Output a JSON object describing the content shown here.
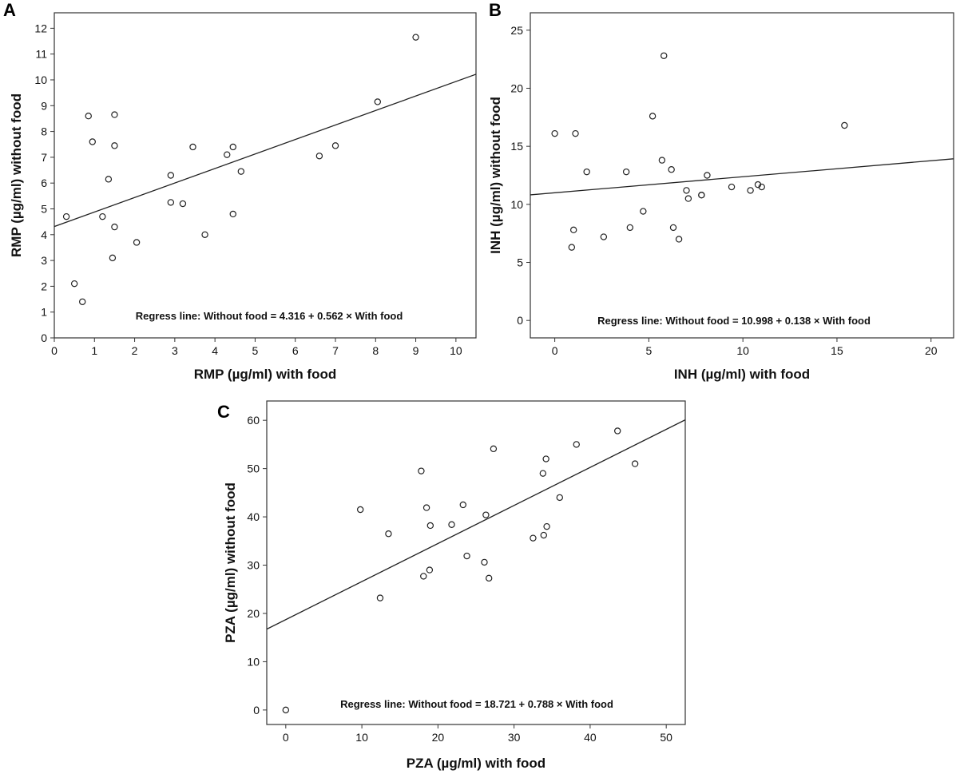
{
  "chart_data": [
    {
      "type": "scatter",
      "panel": "A",
      "xlabel": "RMP (µg/ml) with food",
      "ylabel": "RMP (µg/ml) without food",
      "xlim": [
        0,
        10.5
      ],
      "ylim": [
        0,
        12.6
      ],
      "xticks": [
        0,
        1,
        2,
        3,
        4,
        5,
        6,
        7,
        8,
        9,
        10
      ],
      "yticks": [
        0,
        1,
        2,
        3,
        4,
        5,
        6,
        7,
        8,
        9,
        10,
        11,
        12
      ],
      "annotation": "Regress line: Without food = 4.316 + 0.562 × With food",
      "regression": {
        "intercept": 4.316,
        "slope": 0.562
      },
      "points": [
        [
          0.3,
          4.7
        ],
        [
          0.5,
          2.1
        ],
        [
          0.7,
          1.4
        ],
        [
          0.85,
          8.6
        ],
        [
          0.95,
          7.6
        ],
        [
          1.2,
          4.7
        ],
        [
          1.35,
          6.15
        ],
        [
          1.45,
          3.1
        ],
        [
          1.5,
          4.3
        ],
        [
          1.5,
          8.65
        ],
        [
          1.5,
          7.45
        ],
        [
          2.05,
          3.7
        ],
        [
          2.9,
          6.3
        ],
        [
          2.9,
          5.25
        ],
        [
          3.2,
          5.2
        ],
        [
          3.45,
          7.4
        ],
        [
          3.75,
          4.0
        ],
        [
          4.3,
          7.1
        ],
        [
          4.45,
          7.4
        ],
        [
          4.45,
          4.8
        ],
        [
          4.65,
          6.45
        ],
        [
          6.6,
          7.05
        ],
        [
          7.0,
          7.45
        ],
        [
          8.05,
          9.15
        ],
        [
          9.0,
          11.65
        ]
      ]
    },
    {
      "type": "scatter",
      "panel": "B",
      "xlabel": "INH (µg/ml) with food",
      "ylabel": "INH (µg/ml) without food",
      "xlim": [
        -1.3,
        21.2
      ],
      "ylim": [
        -1.5,
        26.5
      ],
      "xticks": [
        0,
        5,
        10,
        15,
        20
      ],
      "yticks": [
        0,
        5,
        10,
        15,
        20,
        25
      ],
      "annotation": "Regress line: Without food = 10.998 + 0.138 × With food",
      "regression": {
        "intercept": 10.998,
        "slope": 0.138
      },
      "points": [
        [
          0.0,
          16.1
        ],
        [
          0.9,
          6.3
        ],
        [
          1.0,
          7.8
        ],
        [
          1.1,
          16.1
        ],
        [
          1.7,
          12.8
        ],
        [
          2.6,
          7.2
        ],
        [
          3.8,
          12.8
        ],
        [
          4.0,
          8.0
        ],
        [
          4.7,
          9.4
        ],
        [
          5.2,
          17.6
        ],
        [
          5.7,
          13.8
        ],
        [
          5.8,
          22.8
        ],
        [
          6.2,
          13.0
        ],
        [
          6.3,
          8.0
        ],
        [
          6.6,
          7.0
        ],
        [
          7.0,
          11.2
        ],
        [
          7.1,
          10.5
        ],
        [
          7.8,
          10.8
        ],
        [
          7.8,
          10.8
        ],
        [
          8.1,
          12.5
        ],
        [
          9.4,
          11.5
        ],
        [
          10.4,
          11.2
        ],
        [
          10.8,
          11.7
        ],
        [
          11.0,
          11.5
        ],
        [
          15.4,
          16.8
        ]
      ]
    },
    {
      "type": "scatter",
      "panel": "C",
      "xlabel": "PZA (µg/ml) with food",
      "ylabel": "PZA (µg/ml) without food",
      "xlim": [
        -2.5,
        52.5
      ],
      "ylim": [
        -3,
        64
      ],
      "xticks": [
        0,
        10,
        20,
        30,
        40,
        50
      ],
      "yticks": [
        0,
        10,
        20,
        30,
        40,
        50,
        60
      ],
      "annotation": "Regress line: Without food = 18.721 + 0.788 × With food",
      "regression": {
        "intercept": 18.721,
        "slope": 0.788
      },
      "points": [
        [
          0.0,
          0.0
        ],
        [
          9.8,
          41.5
        ],
        [
          12.4,
          23.2
        ],
        [
          13.5,
          36.5
        ],
        [
          17.8,
          49.5
        ],
        [
          18.1,
          27.7
        ],
        [
          18.5,
          41.9
        ],
        [
          18.9,
          29.0
        ],
        [
          19.0,
          38.2
        ],
        [
          21.8,
          38.4
        ],
        [
          23.3,
          42.5
        ],
        [
          23.8,
          31.9
        ],
        [
          26.1,
          30.6
        ],
        [
          26.3,
          40.4
        ],
        [
          26.7,
          27.3
        ],
        [
          27.3,
          54.1
        ],
        [
          32.5,
          35.6
        ],
        [
          33.8,
          49.0
        ],
        [
          33.9,
          36.2
        ],
        [
          34.2,
          52.0
        ],
        [
          34.3,
          38.0
        ],
        [
          36.0,
          44.0
        ],
        [
          38.2,
          55.0
        ],
        [
          43.6,
          57.8
        ],
        [
          45.9,
          51.0
        ]
      ]
    }
  ]
}
